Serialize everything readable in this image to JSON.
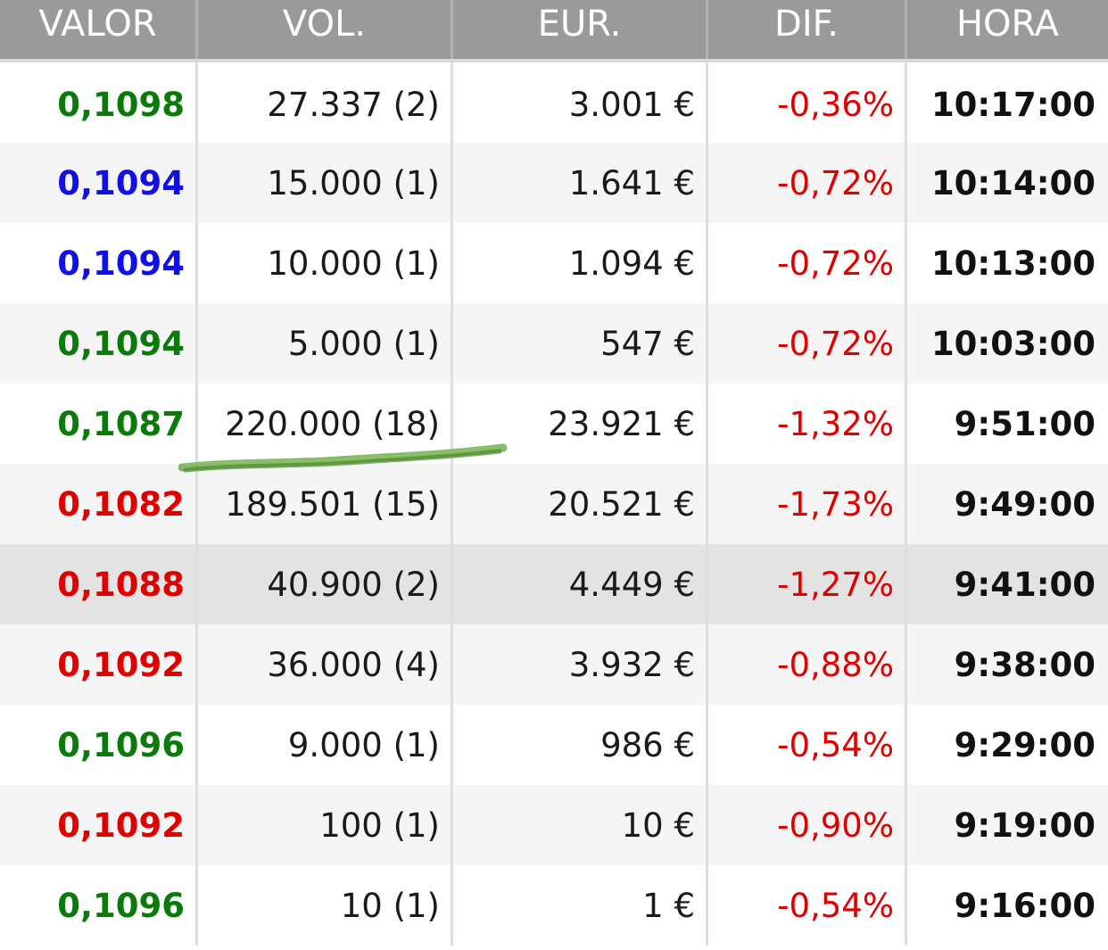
{
  "header": {
    "valor": "VALOR",
    "vol": "VOL.",
    "eur": "EUR.",
    "dif": "DIF.",
    "hora": "HORA"
  },
  "colors": {
    "green": "#0a7a0a",
    "blue": "#1010e6",
    "red": "#e00000",
    "header_bg": "#9a9a9a",
    "highlight_row": "#e3e3e3",
    "annotation": "#5b9a3c"
  },
  "rows": [
    {
      "valor": "0,1098",
      "valor_color": "#0a7a0a",
      "vol": "27.337 (2)",
      "eur": "3.001 €",
      "dif": "-0,36%",
      "hora": "10:17:00"
    },
    {
      "valor": "0,1094",
      "valor_color": "#1010e6",
      "vol": "15.000 (1)",
      "eur": "1.641 €",
      "dif": "-0,72%",
      "hora": "10:14:00"
    },
    {
      "valor": "0,1094",
      "valor_color": "#1010e6",
      "vol": "10.000 (1)",
      "eur": "1.094 €",
      "dif": "-0,72%",
      "hora": "10:13:00"
    },
    {
      "valor": "0,1094",
      "valor_color": "#0a7a0a",
      "vol": "5.000 (1)",
      "eur": "547 €",
      "dif": "-0,72%",
      "hora": "10:03:00"
    },
    {
      "valor": "0,1087",
      "valor_color": "#0a7a0a",
      "vol": "220.000 (18)",
      "eur": "23.921 €",
      "dif": "-1,32%",
      "hora": "9:51:00"
    },
    {
      "valor": "0,1082",
      "valor_color": "#e00000",
      "vol": "189.501 (15)",
      "eur": "20.521 €",
      "dif": "-1,73%",
      "hora": "9:49:00"
    },
    {
      "valor": "0,1088",
      "valor_color": "#e00000",
      "vol": "40.900 (2)",
      "eur": "4.449 €",
      "dif": "-1,27%",
      "hora": "9:41:00"
    },
    {
      "valor": "0,1092",
      "valor_color": "#e00000",
      "vol": "36.000 (4)",
      "eur": "3.932 €",
      "dif": "-0,88%",
      "hora": "9:38:00"
    },
    {
      "valor": "0,1096",
      "valor_color": "#0a7a0a",
      "vol": "9.000 (1)",
      "eur": "986 €",
      "dif": "-0,54%",
      "hora": "9:29:00"
    },
    {
      "valor": "0,1092",
      "valor_color": "#e00000",
      "vol": "100 (1)",
      "eur": "10 €",
      "dif": "-0,90%",
      "hora": "9:19:00"
    },
    {
      "valor": "0,1096",
      "valor_color": "#0a7a0a",
      "vol": "10 (1)",
      "eur": "1 €",
      "dif": "-0,54%",
      "hora": "9:16:00"
    }
  ]
}
